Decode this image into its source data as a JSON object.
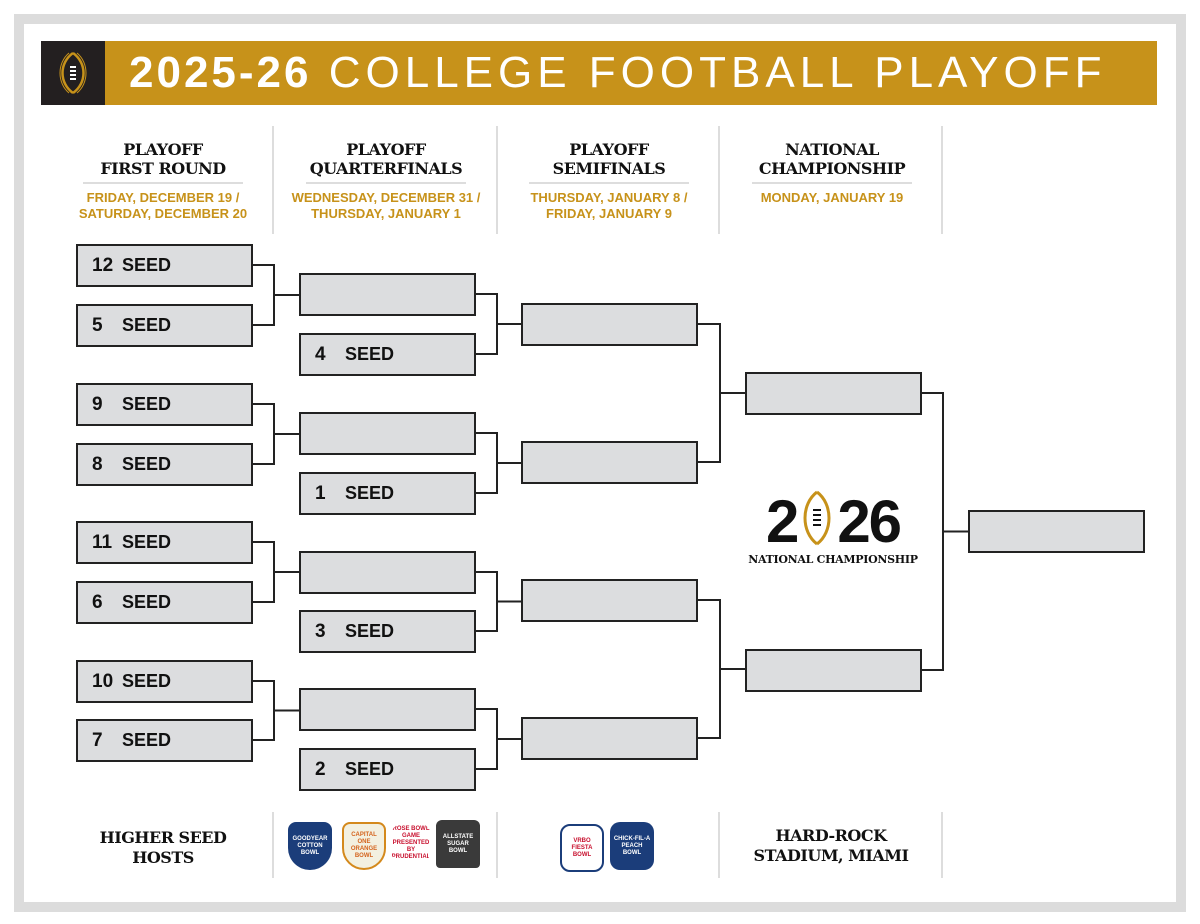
{
  "header": {
    "year": "2025-26",
    "title": "COLLEGE FOOTBALL PLAYOFF",
    "brand_color": "#c7921a",
    "logo": "cfp-football-logo"
  },
  "columns": [
    {
      "title1": "PLAYOFF",
      "title2": "FIRST ROUND",
      "date1": "FRIDAY, DECEMBER 19 /",
      "date2": "SATURDAY, DECEMBER 20"
    },
    {
      "title1": "PLAYOFF",
      "title2": "QUARTERFINALS",
      "date1": "WEDNESDAY, DECEMBER 31 /",
      "date2": "THURSDAY, JANUARY 1"
    },
    {
      "title1": "PLAYOFF",
      "title2": "SEMIFINALS",
      "date1": "THURSDAY, JANUARY 8 /",
      "date2": "FRIDAY, JANUARY 9"
    },
    {
      "title1": "NATIONAL",
      "title2": "CHAMPIONSHIP",
      "date1": "MONDAY, JANUARY 19",
      "date2": ""
    }
  ],
  "seed_label": "SEED",
  "first_round": [
    "12",
    "5",
    "9",
    "8",
    "11",
    "6",
    "10",
    "7"
  ],
  "quarterfinal_seeds": [
    "4",
    "1",
    "3",
    "2"
  ],
  "championship_logo": {
    "year_left": "2",
    "year_right": "26",
    "label": "NATIONAL CHAMPIONSHIP"
  },
  "footer": {
    "first_round": [
      "HIGHER SEED",
      "HOSTS"
    ],
    "quarterfinal_bowls": [
      "Goodyear Cotton Bowl",
      "Capital One Orange Bowl",
      "Rose Bowl Game presented by Prudential",
      "Allstate Sugar Bowl"
    ],
    "semifinal_bowls": [
      "Vrbo Fiesta Bowl",
      "Chick-fil-A Peach Bowl"
    ],
    "championship": [
      "HARD-ROCK",
      "STADIUM, MIAMI"
    ]
  }
}
